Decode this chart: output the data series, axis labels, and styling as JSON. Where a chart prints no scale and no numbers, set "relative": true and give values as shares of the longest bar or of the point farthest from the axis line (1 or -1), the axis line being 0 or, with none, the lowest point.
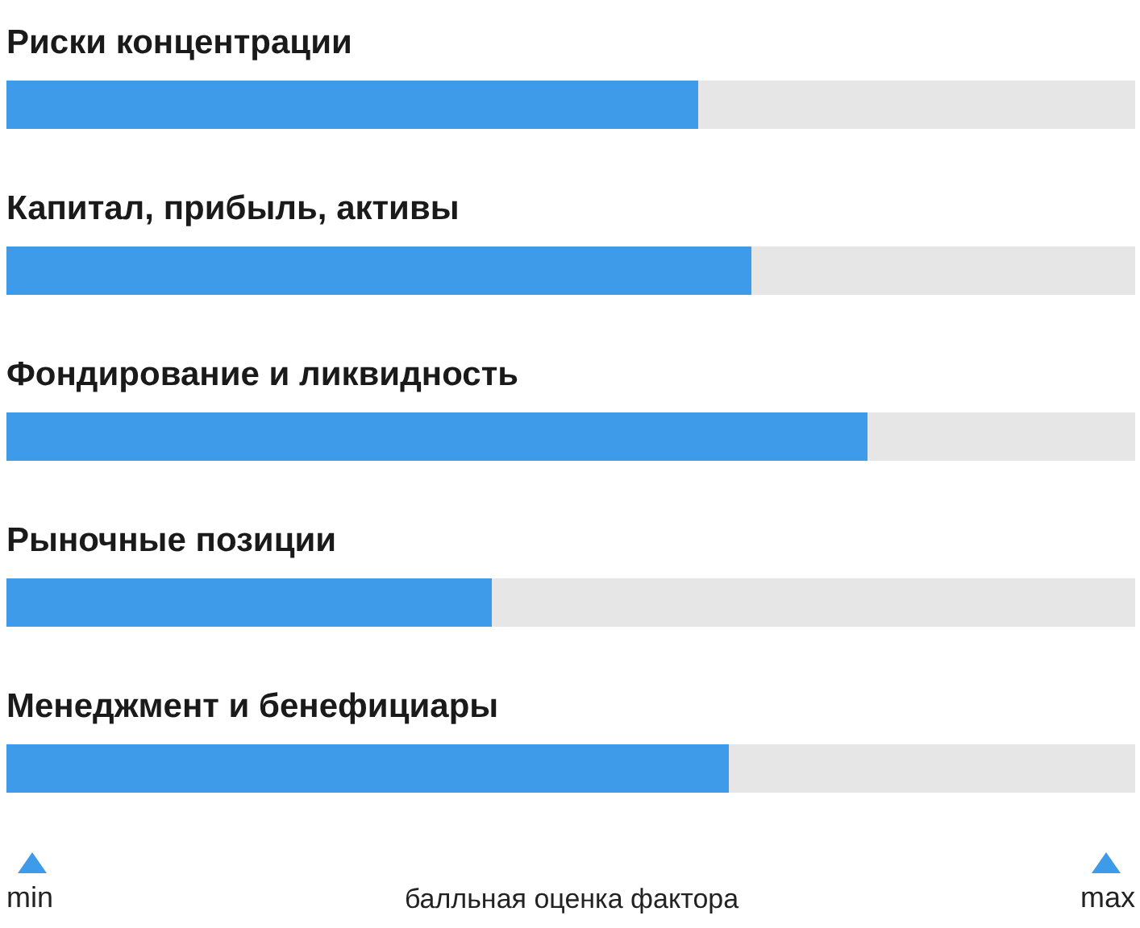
{
  "chart_data": {
    "type": "bar",
    "orientation": "horizontal",
    "stacked": true,
    "relative": true,
    "categories": [
      "Риски концентрации",
      "Капитал, прибыль, активы",
      "Фондирование и ликвидность",
      "Рыночные позиции",
      "Менеджмент и бенефициары"
    ],
    "series": [
      {
        "color": "#3d9be9",
        "values": [
          0.613,
          0.66,
          0.763,
          0.43,
          0.64
        ]
      },
      {
        "color": "#e6e6e6",
        "values": [
          0.387,
          0.34,
          0.237,
          0.57,
          0.36
        ]
      }
    ],
    "xlabel": "балльная оценка фактора",
    "annotations": [
      "min",
      "max"
    ]
  }
}
